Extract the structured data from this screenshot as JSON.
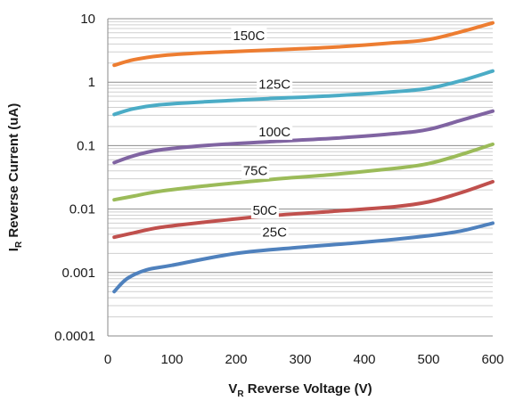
{
  "chart_data": {
    "type": "line",
    "xlabel_main": "V",
    "xlabel_sub": "R",
    "xlabel_rest": " Reverse Voltage (V)",
    "ylabel_main": "I",
    "ylabel_sub": "R",
    "ylabel_rest": " Reverse Current (uA)",
    "xlim": [
      0,
      600
    ],
    "ylim": [
      0.0001,
      10
    ],
    "yscale": "log",
    "x_ticks": [
      0,
      100,
      200,
      300,
      400,
      500,
      600
    ],
    "x_tick_labels": [
      "0",
      "100",
      "200",
      "300",
      "400",
      "500",
      "600"
    ],
    "y_ticks": [
      10,
      1,
      0.1,
      0.01,
      0.001,
      0.0001
    ],
    "y_tick_labels": [
      "10",
      "1",
      "0.1",
      "0.01",
      "0.001",
      "0.0001"
    ],
    "grid": "horizontal major and minor",
    "legend": "none",
    "series": [
      {
        "name": "150C",
        "color": "#ED7D31",
        "points": [
          [
            10,
            1.85
          ],
          [
            40,
            2.25
          ],
          [
            80,
            2.6
          ],
          [
            150,
            2.9
          ],
          [
            250,
            3.2
          ],
          [
            350,
            3.55
          ],
          [
            450,
            4.2
          ],
          [
            500,
            4.7
          ],
          [
            550,
            6.2
          ],
          [
            600,
            8.6
          ]
        ]
      },
      {
        "name": "125C",
        "color": "#4BACC6",
        "points": [
          [
            10,
            0.31
          ],
          [
            40,
            0.38
          ],
          [
            80,
            0.44
          ],
          [
            150,
            0.49
          ],
          [
            250,
            0.55
          ],
          [
            350,
            0.61
          ],
          [
            450,
            0.71
          ],
          [
            500,
            0.8
          ],
          [
            550,
            1.05
          ],
          [
            600,
            1.5
          ]
        ]
      },
      {
        "name": "100C",
        "color": "#8064A2",
        "points": [
          [
            10,
            0.054
          ],
          [
            40,
            0.069
          ],
          [
            80,
            0.085
          ],
          [
            150,
            0.1
          ],
          [
            250,
            0.115
          ],
          [
            350,
            0.13
          ],
          [
            450,
            0.155
          ],
          [
            500,
            0.18
          ],
          [
            550,
            0.25
          ],
          [
            600,
            0.35
          ]
        ]
      },
      {
        "name": "75C",
        "color": "#9BBB59",
        "points": [
          [
            10,
            0.014
          ],
          [
            40,
            0.016
          ],
          [
            80,
            0.019
          ],
          [
            150,
            0.023
          ],
          [
            250,
            0.029
          ],
          [
            350,
            0.035
          ],
          [
            450,
            0.044
          ],
          [
            500,
            0.052
          ],
          [
            550,
            0.072
          ],
          [
            600,
            0.105
          ]
        ]
      },
      {
        "name": "50C",
        "color": "#C0504D",
        "points": [
          [
            10,
            0.0036
          ],
          [
            40,
            0.0042
          ],
          [
            80,
            0.0051
          ],
          [
            150,
            0.0062
          ],
          [
            250,
            0.0078
          ],
          [
            350,
            0.0092
          ],
          [
            450,
            0.011
          ],
          [
            500,
            0.013
          ],
          [
            550,
            0.018
          ],
          [
            600,
            0.027
          ]
        ]
      },
      {
        "name": "25C",
        "color": "#4F81BD",
        "points": [
          [
            10,
            0.0005
          ],
          [
            30,
            0.0008
          ],
          [
            60,
            0.0011
          ],
          [
            100,
            0.0013
          ],
          [
            200,
            0.002
          ],
          [
            300,
            0.0025
          ],
          [
            400,
            0.003
          ],
          [
            500,
            0.0038
          ],
          [
            550,
            0.0045
          ],
          [
            600,
            0.006
          ]
        ]
      }
    ],
    "annotations": [
      {
        "text": "150C",
        "x": 220,
        "y": 5.4
      },
      {
        "text": "125C",
        "x": 260,
        "y": 0.93
      },
      {
        "text": "100C",
        "x": 260,
        "y": 0.165
      },
      {
        "text": "75C",
        "x": 230,
        "y": 0.04
      },
      {
        "text": "50C",
        "x": 245,
        "y": 0.0095
      },
      {
        "text": "25C",
        "x": 260,
        "y": 0.0043
      }
    ]
  }
}
